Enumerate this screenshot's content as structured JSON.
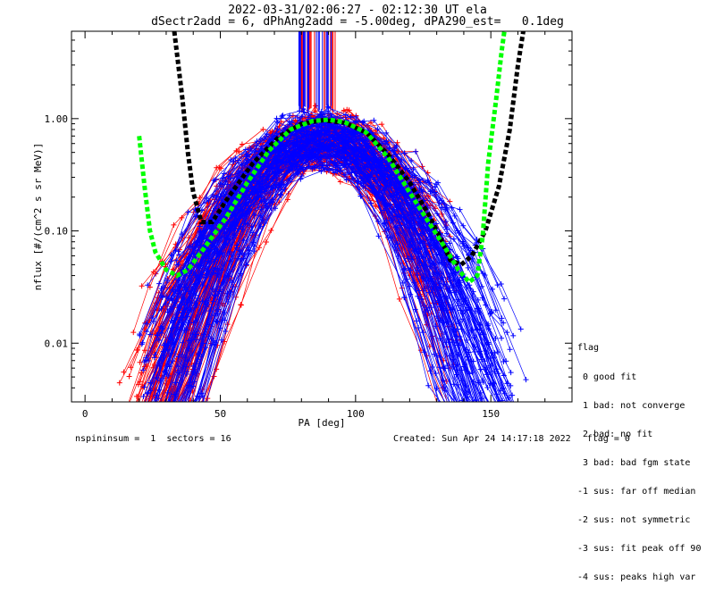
{
  "title_line1": "2022-03-31/02:06:27 - 02:12:30 UT ela",
  "title_line2": "dSectr2add = 6, dPhAng2add = -5.00deg, dPA290_est=   0.1deg",
  "footer_left": "nspininsum =  1  sectors = 16",
  "footer_right": "Created: Sun Apr 24 14:17:18 2022   flag = 0",
  "legend": {
    "title": "flag",
    "entries": [
      " 0 good fit",
      " 1 bad: not converge",
      " 2 bad: no fit",
      " 3 bad: bad fgm state",
      "-1 sus: far off median",
      "-2 sus: not symmetric",
      "-3 sus: fit peak off 90",
      "-4 sus: peaks high var"
    ]
  },
  "colors": {
    "red": "#ff0000",
    "blue": "#0000ff",
    "black": "#000000",
    "green": "#00ff00"
  },
  "chart_data": {
    "type": "line",
    "xlabel": "PA [deg]",
    "ylabel": "nflux [#/(cm^2 s sr MeV)]",
    "xlim": [
      -5,
      180
    ],
    "ylim": [
      0.003,
      6.0
    ],
    "yscale": "log",
    "x_ticks": [
      0,
      50,
      100,
      150
    ],
    "x_tick_labels": [
      "0",
      "50",
      "100",
      "150"
    ],
    "y_ticks": [
      0.01,
      0.1,
      1.0
    ],
    "y_tick_labels": [
      "0.01",
      "0.10",
      "1.00"
    ],
    "series": [
      {
        "color": "#ff0000",
        "style": "lines with plus markers",
        "count_approx": 120,
        "x_range": [
          12,
          140
        ],
        "peak_x": 88,
        "peak_y": 1.0,
        "half_width_deg": 19
      },
      {
        "color": "#0000ff",
        "style": "lines with plus markers",
        "count_approx": 120,
        "x_range": [
          20,
          165
        ],
        "peak_x": 88,
        "peak_y": 1.0,
        "half_width_deg": 19
      },
      {
        "color": "#000000",
        "style": "thick dotted fit curve",
        "points": [
          [
            33,
            6.0
          ],
          [
            36,
            1.5
          ],
          [
            38,
            0.5
          ],
          [
            40,
            0.22
          ],
          [
            43,
            0.12
          ],
          [
            47,
            0.12
          ],
          [
            53,
            0.2
          ],
          [
            62,
            0.4
          ],
          [
            72,
            0.7
          ],
          [
            80,
            0.9
          ],
          [
            88,
            0.97
          ],
          [
            96,
            0.92
          ],
          [
            104,
            0.75
          ],
          [
            112,
            0.48
          ],
          [
            120,
            0.27
          ],
          [
            127,
            0.14
          ],
          [
            132,
            0.08
          ],
          [
            135,
            0.055
          ],
          [
            139,
            0.05
          ],
          [
            143,
            0.06
          ],
          [
            148,
            0.1
          ],
          [
            153,
            0.25
          ],
          [
            157,
            0.8
          ],
          [
            160,
            3.0
          ],
          [
            162,
            6.0
          ]
        ]
      },
      {
        "color": "#00ff00",
        "style": "thick dotted fit curve",
        "points": [
          [
            20,
            0.7
          ],
          [
            22,
            0.25
          ],
          [
            24,
            0.1
          ],
          [
            26,
            0.065
          ],
          [
            30,
            0.045
          ],
          [
            34,
            0.04
          ],
          [
            38,
            0.045
          ],
          [
            44,
            0.07
          ],
          [
            52,
            0.13
          ],
          [
            60,
            0.27
          ],
          [
            68,
            0.52
          ],
          [
            76,
            0.8
          ],
          [
            84,
            0.95
          ],
          [
            90,
            0.98
          ],
          [
            96,
            0.93
          ],
          [
            104,
            0.75
          ],
          [
            112,
            0.45
          ],
          [
            120,
            0.22
          ],
          [
            128,
            0.11
          ],
          [
            134,
            0.065
          ],
          [
            138,
            0.045
          ],
          [
            142,
            0.035
          ],
          [
            145,
            0.04
          ],
          [
            147,
            0.09
          ],
          [
            149,
            0.4
          ],
          [
            152,
            1.5
          ],
          [
            154,
            4.0
          ],
          [
            155,
            6.0
          ]
        ]
      }
    ]
  }
}
